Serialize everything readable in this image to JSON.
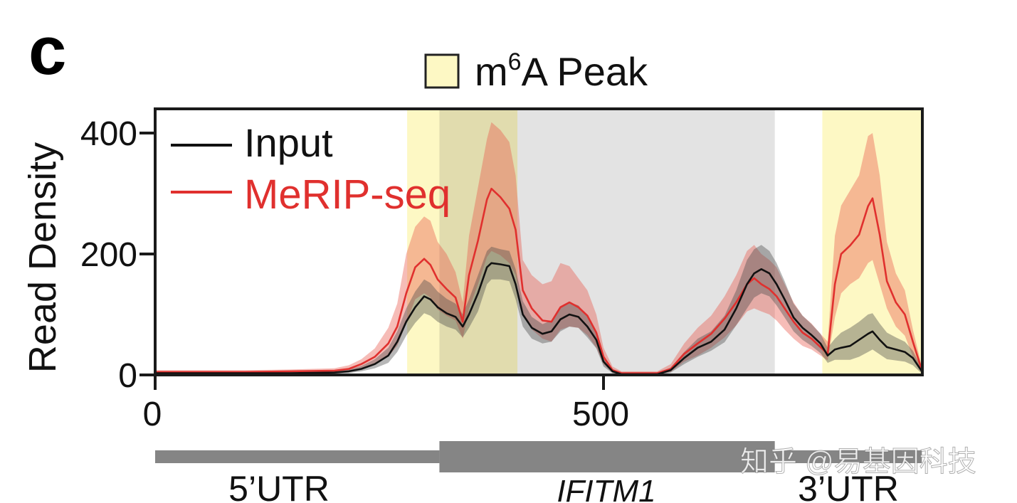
{
  "chart_data": {
    "type": "line",
    "panel_label": "c",
    "title": "",
    "xlabel": "",
    "ylabel": "Read Density",
    "xlim": [
      0,
      855
    ],
    "ylim": [
      0,
      440
    ],
    "x_ticks": [
      0,
      500
    ],
    "y_ticks": [
      0,
      200,
      400
    ],
    "grid": false,
    "legend_placement": "top-left",
    "x": [
      0,
      50,
      100,
      150,
      200,
      216,
      230,
      245,
      260,
      270,
      280,
      290,
      300,
      307,
      315,
      325,
      335,
      343,
      350,
      360,
      370,
      375,
      385,
      395,
      402,
      410,
      420,
      432,
      442,
      452,
      462,
      472,
      482,
      492,
      500,
      510,
      520,
      560,
      575,
      590,
      605,
      620,
      635,
      648,
      660,
      668,
      676,
      685,
      693,
      702,
      712,
      722,
      732,
      742,
      750,
      758,
      765,
      775,
      785,
      795,
      800,
      808,
      816,
      826,
      836,
      845,
      855
    ],
    "series": [
      {
        "name": "Input",
        "color": "#111111",
        "band_color": "#4a4a4a",
        "values": [
          3,
          3,
          3,
          3,
          4,
          6,
          10,
          18,
          32,
          55,
          88,
          112,
          130,
          125,
          112,
          102,
          96,
          80,
          100,
          135,
          178,
          185,
          183,
          180,
          150,
          100,
          78,
          68,
          72,
          92,
          100,
          96,
          80,
          58,
          22,
          6,
          1,
          1,
          8,
          28,
          45,
          55,
          75,
          110,
          150,
          168,
          175,
          168,
          150,
          125,
          95,
          78,
          66,
          52,
          32,
          42,
          45,
          48,
          58,
          68,
          72,
          58,
          46,
          42,
          38,
          28,
          6
        ],
        "lower": [
          1,
          1,
          1,
          1,
          2,
          3,
          6,
          11,
          20,
          38,
          65,
          86,
          102,
          98,
          88,
          80,
          75,
          62,
          78,
          105,
          150,
          158,
          158,
          155,
          125,
          80,
          60,
          52,
          55,
          72,
          80,
          78,
          62,
          44,
          14,
          3,
          0,
          0,
          4,
          18,
          30,
          40,
          54,
          82,
          110,
          128,
          135,
          130,
          115,
          95,
          72,
          58,
          48,
          36,
          20,
          25,
          25,
          25,
          30,
          38,
          42,
          34,
          26,
          24,
          22,
          16,
          2
        ],
        "upper": [
          5,
          5,
          5,
          5,
          6,
          9,
          15,
          26,
          45,
          72,
          110,
          138,
          158,
          152,
          138,
          126,
          118,
          100,
          125,
          165,
          205,
          212,
          208,
          205,
          175,
          122,
          96,
          84,
          90,
          112,
          120,
          115,
          98,
          72,
          30,
          10,
          3,
          3,
          12,
          38,
          60,
          72,
          98,
          140,
          190,
          208,
          215,
          205,
          185,
          155,
          118,
          98,
          84,
          68,
          45,
          60,
          70,
          78,
          88,
          100,
          102,
          85,
          70,
          62,
          55,
          40,
          10
        ]
      },
      {
        "name": "MeRIP-seq",
        "color": "#e0302e",
        "band_color": "#e8574a",
        "values": [
          5,
          5,
          5,
          6,
          7,
          10,
          18,
          30,
          52,
          80,
          135,
          178,
          192,
          182,
          158,
          142,
          128,
          88,
          165,
          222,
          290,
          308,
          294,
          275,
          240,
          140,
          110,
          90,
          88,
          112,
          120,
          112,
          98,
          70,
          30,
          8,
          3,
          3,
          10,
          35,
          52,
          68,
          93,
          120,
          150,
          160,
          150,
          142,
          130,
          110,
          88,
          70,
          60,
          46,
          35,
          150,
          200,
          214,
          232,
          279,
          292,
          232,
          155,
          120,
          100,
          55,
          8
        ],
        "lower": [
          3,
          3,
          3,
          4,
          4,
          5,
          11,
          18,
          30,
          48,
          85,
          125,
          135,
          128,
          108,
          98,
          90,
          60,
          110,
          150,
          195,
          205,
          198,
          185,
          165,
          100,
          75,
          60,
          55,
          75,
          80,
          78,
          66,
          45,
          18,
          4,
          1,
          1,
          5,
          22,
          32,
          45,
          62,
          82,
          105,
          110,
          105,
          100,
          90,
          75,
          60,
          48,
          42,
          32,
          24,
          95,
          135,
          150,
          160,
          185,
          190,
          150,
          110,
          80,
          65,
          30,
          4
        ],
        "upper": [
          8,
          8,
          8,
          9,
          11,
          16,
          26,
          44,
          78,
          118,
          200,
          245,
          262,
          255,
          220,
          200,
          170,
          120,
          230,
          310,
          390,
          418,
          405,
          385,
          330,
          190,
          165,
          150,
          155,
          185,
          180,
          160,
          140,
          100,
          45,
          14,
          6,
          6,
          18,
          52,
          78,
          98,
          130,
          165,
          205,
          215,
          200,
          190,
          178,
          150,
          120,
          98,
          85,
          68,
          55,
          230,
          280,
          305,
          330,
          395,
          400,
          330,
          220,
          168,
          140,
          75,
          14
        ]
      }
    ],
    "peak_legend": {
      "prefix": "m",
      "sup": "6",
      "suffix": "A Peak",
      "color": "#fdf8c4"
    },
    "m6a_peak_regions": [
      [
        281,
        404
      ],
      [
        744,
        855
      ]
    ],
    "cds_region": {
      "range": [
        317,
        691
      ],
      "color": "#e3e3e3"
    },
    "gene_model": {
      "color": "#858585",
      "utr5": {
        "label": "5’UTR",
        "range": [
          0,
          317
        ]
      },
      "cds": {
        "label": "IFITM1",
        "range": [
          317,
          691
        ]
      },
      "utr3": {
        "label": "3’UTR",
        "range": [
          691,
          855
        ]
      }
    }
  },
  "watermark": "知乎 @易基因科技"
}
